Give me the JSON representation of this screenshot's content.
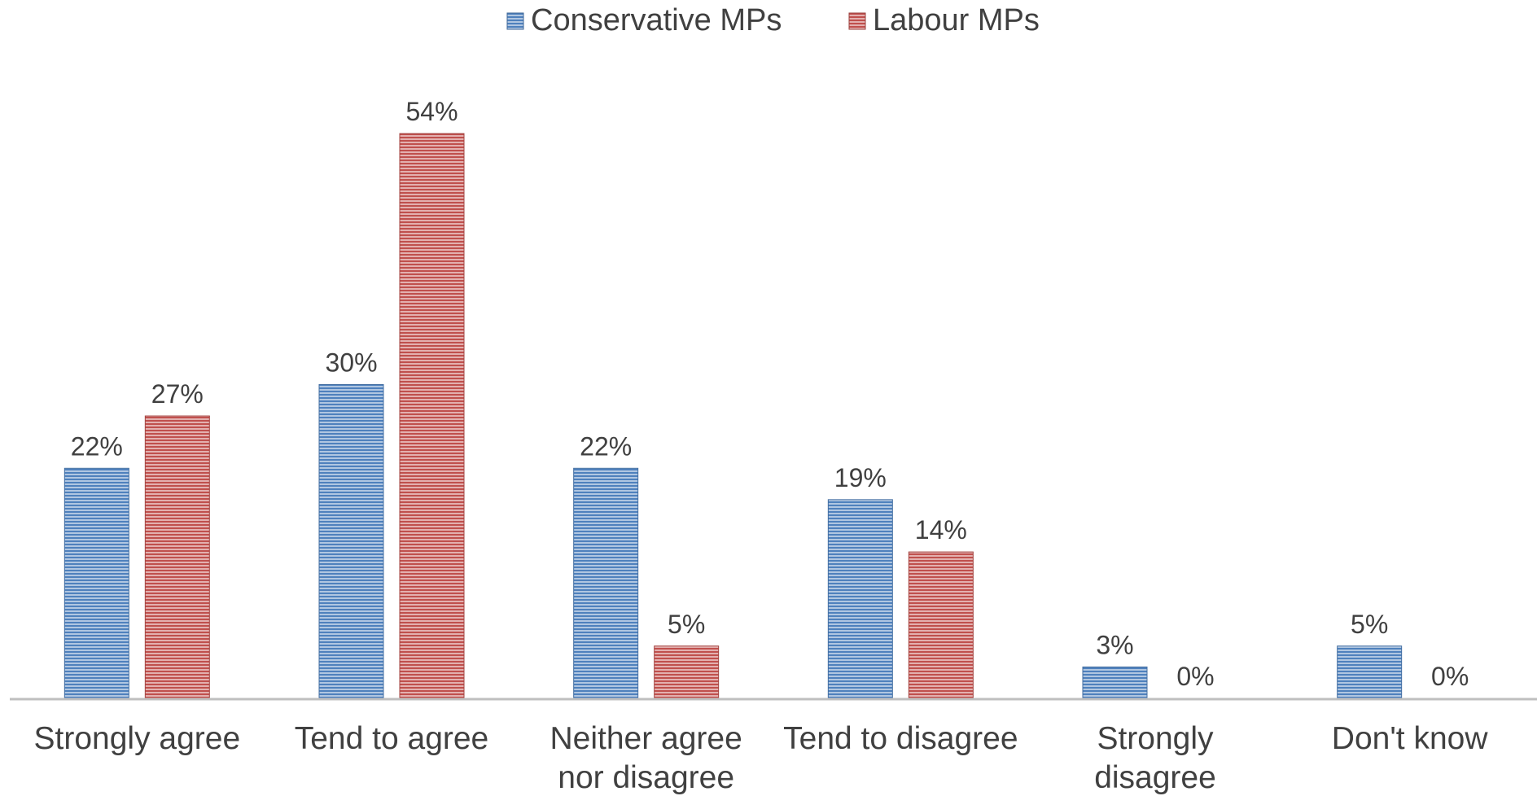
{
  "chart_data": {
    "type": "bar",
    "title": "",
    "xlabel": "",
    "ylabel": "",
    "ylim": [
      0,
      60
    ],
    "grid": false,
    "legend_position": "top-center",
    "categories": [
      [
        "Strongly agree"
      ],
      [
        "Tend to agree"
      ],
      [
        "Neither agree",
        "nor disagree"
      ],
      [
        "Tend to disagree"
      ],
      [
        "Strongly",
        "disagree"
      ],
      [
        "Don't know"
      ]
    ],
    "series": [
      {
        "name": "Conservative MPs",
        "color": "#4f81bd",
        "values": [
          22,
          30,
          22,
          19,
          3,
          5
        ],
        "labels": [
          "22%",
          "30%",
          "22%",
          "19%",
          "3%",
          "5%"
        ]
      },
      {
        "name": "Labour MPs",
        "color": "#c0504d",
        "values": [
          27,
          54,
          5,
          14,
          0,
          0
        ],
        "labels": [
          "27%",
          "54%",
          "5%",
          "14%",
          "0%",
          "0%"
        ]
      }
    ],
    "axis_color": "#bfbfbf"
  }
}
